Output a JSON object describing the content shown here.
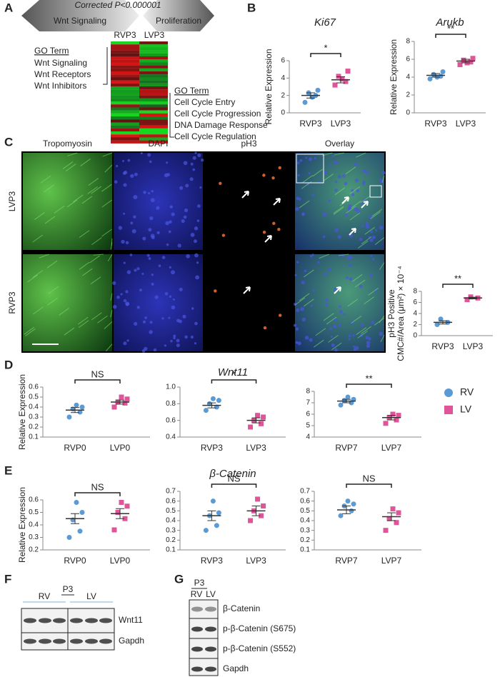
{
  "panel_labels": [
    "A",
    "B",
    "C",
    "D",
    "E",
    "F",
    "G"
  ],
  "panel_a": {
    "banner_title": "Corrected P<0.000001",
    "arrow_left": "Wnt Signaling",
    "arrow_right": "Proliferation",
    "columns": [
      "RVP3",
      "LVP3"
    ],
    "go_left": {
      "heading": "GO Term",
      "terms": [
        "Wnt Signaling",
        "Wnt Receptors",
        "Wnt Inhibitors"
      ]
    },
    "go_right": {
      "heading": "GO Term",
      "terms": [
        "Cell Cycle Entry",
        "Cell Cycle Progression",
        "DNA Damage Response",
        "Cell Cycle Regulation"
      ]
    }
  },
  "panel_c": {
    "channels": [
      "Tropomyosin",
      "DAPI",
      "pH3",
      "Overlay"
    ],
    "channel_colors": [
      "#3aa54a",
      "#3535c8",
      "#b0452c",
      "#222222"
    ],
    "rows": [
      "LVP3",
      "RVP3"
    ]
  },
  "legend": {
    "items": [
      {
        "label": "RV",
        "color": "#5b9bd5",
        "marker": "circle"
      },
      {
        "label": "LV",
        "color": "#e0559a",
        "marker": "square"
      }
    ]
  },
  "panel_f": {
    "group": "P3",
    "lanes": [
      "RV",
      "LV"
    ],
    "bands": [
      "Wnt11",
      "Gapdh"
    ]
  },
  "panel_g": {
    "group": "P3",
    "lanes": [
      "RV",
      "LV"
    ],
    "bands": [
      "β-Catenin",
      "p-β-Catenin (S675)",
      "p-β-Catenin (S552)",
      "Gapdh"
    ]
  },
  "chart_data": [
    {
      "type": "strip",
      "title": "Ki67",
      "ylabel": [
        "Relative Expression"
      ],
      "ylim": [
        0,
        6
      ],
      "yticks": [
        0,
        2,
        4,
        6
      ],
      "significance": "*",
      "groups": [
        {
          "label": "RVP3",
          "color": "#5b9bd5",
          "marker": "circle",
          "points": [
            1.2,
            2.0,
            2.3,
            2.6,
            1.8
          ],
          "mean": 2.0,
          "sem": 0.3
        },
        {
          "label": "LVP3",
          "color": "#e0559a",
          "marker": "square",
          "points": [
            3.2,
            3.6,
            4.2,
            4.8,
            3.9
          ],
          "mean": 3.8,
          "sem": 0.35
        }
      ]
    },
    {
      "type": "strip",
      "title": "Arukb",
      "ylabel": [
        "Relative Expression"
      ],
      "ylim": [
        0,
        8
      ],
      "yticks": [
        0,
        2,
        4,
        6,
        8
      ],
      "significance": "**",
      "groups": [
        {
          "label": "RVP3",
          "color": "#5b9bd5",
          "marker": "circle",
          "points": [
            3.8,
            4.1,
            4.3,
            4.6,
            4.0
          ],
          "mean": 4.2,
          "sem": 0.2
        },
        {
          "label": "LVP3",
          "color": "#e0559a",
          "marker": "square",
          "points": [
            5.4,
            5.7,
            5.9,
            6.1,
            5.6
          ],
          "mean": 5.8,
          "sem": 0.2
        }
      ]
    },
    {
      "type": "strip",
      "ylabel": [
        "pH3 Positive",
        "CMC#/Area (μm²) × 10⁻⁴"
      ],
      "ylim": [
        0,
        8
      ],
      "yticks": [
        0,
        2,
        4,
        6,
        8
      ],
      "significance": "**",
      "groups": [
        {
          "label": "RVP3",
          "color": "#5b9bd5",
          "marker": "circle",
          "points": [
            2.0,
            2.4,
            3.0
          ],
          "mean": 2.4,
          "sem": 0.3
        },
        {
          "label": "LVP3",
          "color": "#e0559a",
          "marker": "square",
          "points": [
            6.5,
            6.8,
            7.0
          ],
          "mean": 6.8,
          "sem": 0.15
        }
      ]
    },
    {
      "type": "strip",
      "ylabel": [
        "Relative Expression"
      ],
      "ylim": [
        0.1,
        0.6
      ],
      "yticks": [
        0.1,
        0.2,
        0.3,
        0.4,
        0.5,
        0.6
      ],
      "significance": "NS",
      "groups": [
        {
          "label": "RVP0",
          "color": "#5b9bd5",
          "marker": "circle",
          "points": [
            0.3,
            0.35,
            0.38,
            0.4,
            0.42
          ],
          "mean": 0.37,
          "sem": 0.025
        },
        {
          "label": "LVP0",
          "color": "#e0559a",
          "marker": "square",
          "points": [
            0.4,
            0.44,
            0.45,
            0.48,
            0.5
          ],
          "mean": 0.45,
          "sem": 0.02
        }
      ]
    },
    {
      "type": "strip",
      "title": "Wnt11",
      "ylim": [
        0.4,
        1
      ],
      "yticks": [
        0.4,
        0.6,
        0.8,
        {
          "value": 1,
          "label": "1.0"
        }
      ],
      "significance": "*",
      "groups": [
        {
          "label": "RVP3",
          "color": "#5b9bd5",
          "marker": "circle",
          "points": [
            0.72,
            0.76,
            0.8,
            0.84,
            0.86
          ],
          "mean": 0.78,
          "sem": 0.03
        },
        {
          "label": "LVP3",
          "color": "#e0559a",
          "marker": "square",
          "points": [
            0.52,
            0.56,
            0.6,
            0.64,
            0.66
          ],
          "mean": 0.6,
          "sem": 0.03
        }
      ]
    },
    {
      "type": "strip",
      "ylim": [
        4,
        8
      ],
      "yticks": [
        4,
        5,
        6,
        7,
        8
      ],
      "significance": "**",
      "groups": [
        {
          "label": "RVP7",
          "color": "#5b9bd5",
          "marker": "circle",
          "points": [
            6.8,
            7.0,
            7.2,
            7.3,
            7.5
          ],
          "mean": 7.15,
          "sem": 0.15
        },
        {
          "label": "LVP7",
          "color": "#e0559a",
          "marker": "square",
          "points": [
            5.2,
            5.5,
            5.7,
            5.9,
            6.0
          ],
          "mean": 5.7,
          "sem": 0.2
        }
      ]
    },
    {
      "type": "strip",
      "ylabel": [
        "Relative Expression"
      ],
      "ylim": [
        0.2,
        0.6
      ],
      "yticks": [
        0.2,
        0.3,
        0.4,
        0.5,
        0.6
      ],
      "significance": "NS",
      "groups": [
        {
          "label": "RVP0",
          "color": "#5b9bd5",
          "marker": "circle",
          "points": [
            0.3,
            0.35,
            0.44,
            0.5,
            0.58
          ],
          "mean": 0.45,
          "sem": 0.04
        },
        {
          "label": "LVP0",
          "color": "#e0559a",
          "marker": "square",
          "points": [
            0.36,
            0.45,
            0.5,
            0.55,
            0.58
          ],
          "mean": 0.49,
          "sem": 0.04
        }
      ]
    },
    {
      "type": "strip",
      "title": "β-Catenin",
      "ylim": [
        0.1,
        0.7
      ],
      "yticks": [
        0.1,
        0.2,
        0.3,
        0.4,
        0.5,
        0.6,
        0.7
      ],
      "significance": "NS",
      "groups": [
        {
          "label": "RVP3",
          "color": "#5b9bd5",
          "marker": "circle",
          "points": [
            0.3,
            0.35,
            0.45,
            0.48,
            0.6
          ],
          "mean": 0.45,
          "sem": 0.05
        },
        {
          "label": "LVP3",
          "color": "#e0559a",
          "marker": "square",
          "points": [
            0.4,
            0.45,
            0.5,
            0.55,
            0.62
          ],
          "mean": 0.5,
          "sem": 0.05
        }
      ]
    },
    {
      "type": "strip",
      "ylim": [
        0.1,
        0.7
      ],
      "yticks": [
        0.1,
        0.2,
        0.3,
        0.4,
        0.5,
        0.6,
        0.7
      ],
      "significance": "NS",
      "groups": [
        {
          "label": "RVP7",
          "color": "#5b9bd5",
          "marker": "circle",
          "points": [
            0.45,
            0.5,
            0.55,
            0.57,
            0.6
          ],
          "mean": 0.51,
          "sem": 0.04
        },
        {
          "label": "LVP7",
          "color": "#e0559a",
          "marker": "square",
          "points": [
            0.3,
            0.38,
            0.42,
            0.48,
            0.52
          ],
          "mean": 0.44,
          "sem": 0.04
        }
      ]
    }
  ]
}
